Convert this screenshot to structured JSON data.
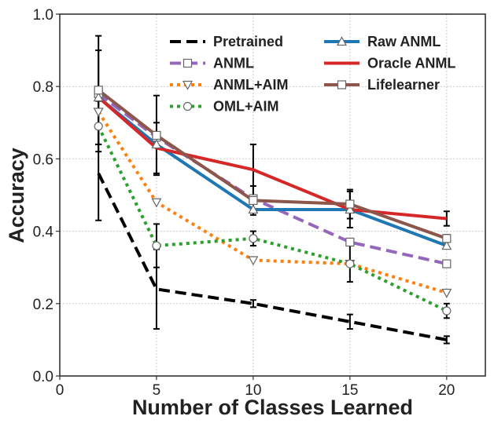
{
  "chart_data": {
    "type": "line",
    "xlabel": "Number of Classes Learned",
    "ylabel": "Accuracy",
    "xlim": [
      0,
      22
    ],
    "ylim": [
      0,
      1.0
    ],
    "xticks": [
      0,
      5,
      10,
      15,
      20
    ],
    "yticks": [
      0.0,
      0.2,
      0.4,
      0.6,
      0.8,
      1.0
    ],
    "xtick_labels": [
      "0",
      "5",
      "10",
      "15",
      "20"
    ],
    "ytick_labels": [
      "0.0",
      "0.2",
      "0.4",
      "0.6",
      "0.8",
      "1.0"
    ],
    "grid": true,
    "legend_position": "top-right",
    "x": [
      2,
      5,
      10,
      15,
      20
    ],
    "series": [
      {
        "name": "Pretrained",
        "color": "#000000",
        "dash": "dashed",
        "marker": "none",
        "values": [
          0.56,
          0.24,
          0.2,
          0.15,
          0.1
        ],
        "errors": [
          0.13,
          0.11,
          0.01,
          0.02,
          0.01
        ]
      },
      {
        "name": "ANML",
        "color": "#9467bd",
        "dash": "dashed",
        "marker": "square",
        "values": [
          0.78,
          0.66,
          0.49,
          0.37,
          0.31
        ]
      },
      {
        "name": "ANML+AIM",
        "color": "#ff7f0e",
        "dash": "dotted",
        "marker": "triangle-down",
        "values": [
          0.73,
          0.48,
          0.32,
          0.31,
          0.23
        ]
      },
      {
        "name": "OML+AIM",
        "color": "#2ca02c",
        "dash": "dotted",
        "marker": "circle",
        "values": [
          0.69,
          0.36,
          0.38,
          0.31,
          0.18
        ],
        "errors": [
          0.07,
          0.06,
          0.02,
          0.05,
          0.02
        ]
      },
      {
        "name": "Raw ANML",
        "color": "#1f77b4",
        "dash": "solid",
        "marker": "triangle-up",
        "values": [
          0.77,
          0.64,
          0.46,
          0.46,
          0.36
        ]
      },
      {
        "name": "Oracle ANML",
        "color": "#d62728",
        "dash": "solid",
        "marker": "none",
        "values": [
          0.77,
          0.63,
          0.57,
          0.46,
          0.435
        ],
        "errors": [
          0.13,
          0.07,
          0.07,
          0.05,
          0.02
        ]
      },
      {
        "name": "Lifelearner",
        "color": "#8c564b",
        "dash": "solid",
        "marker": "square",
        "values": [
          0.79,
          0.665,
          0.485,
          0.475,
          0.38
        ],
        "errors": [
          0.15,
          0.11,
          0.04,
          0.04,
          0.01
        ]
      }
    ]
  }
}
